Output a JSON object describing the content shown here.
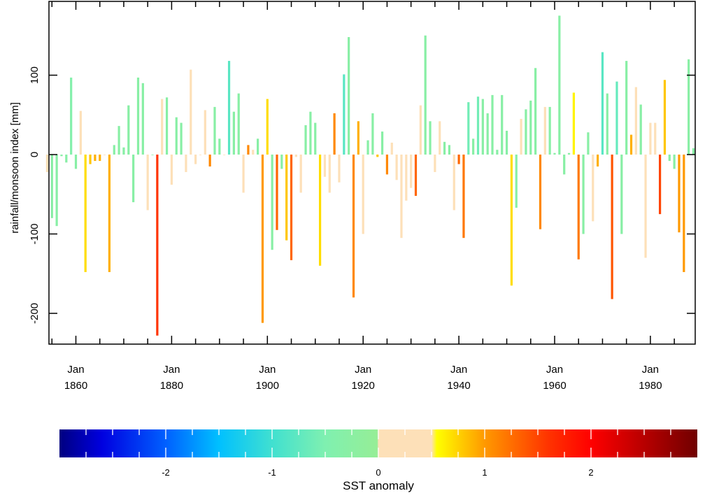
{
  "chart_data": {
    "type": "bar",
    "ylabel": "rainfall/monsoon index [mm]",
    "ylim": [
      -240,
      190
    ],
    "xlim": [
      1852,
      1990
    ],
    "y_ticks": [
      -200,
      -100,
      0,
      100
    ],
    "y_tick_labels": [
      "-200",
      "-100",
      "0",
      "100"
    ],
    "x_ticks": [
      {
        "year": 1860,
        "line1": "Jan",
        "line2": "1860"
      },
      {
        "year": 1880,
        "line1": "Jan",
        "line2": "1880"
      },
      {
        "year": 1900,
        "line1": "Jan",
        "line2": "1900"
      },
      {
        "year": 1920,
        "line1": "Jan",
        "line2": "1920"
      },
      {
        "year": 1940,
        "line1": "Jan",
        "line2": "1940"
      },
      {
        "year": 1960,
        "line1": "Jan",
        "line2": "1960"
      },
      {
        "year": 1980,
        "line1": "Jan",
        "line2": "1980"
      }
    ],
    "x_minor_tick_step": 5,
    "grid": false,
    "years": [
      1854,
      1855,
      1856,
      1857,
      1858,
      1859,
      1860,
      1861,
      1862,
      1863,
      1864,
      1865,
      1866,
      1867,
      1868,
      1869,
      1870,
      1871,
      1872,
      1873,
      1874,
      1875,
      1876,
      1877,
      1878,
      1879,
      1880,
      1881,
      1882,
      1883,
      1884,
      1885,
      1886,
      1887,
      1888,
      1889,
      1890,
      1891,
      1892,
      1893,
      1894,
      1895,
      1896,
      1897,
      1898,
      1899,
      1900,
      1901,
      1902,
      1903,
      1904,
      1905,
      1906,
      1907,
      1908,
      1909,
      1910,
      1911,
      1912,
      1913,
      1914,
      1915,
      1916,
      1917,
      1918,
      1919,
      1920,
      1921,
      1922,
      1923,
      1924,
      1925,
      1926,
      1927,
      1928,
      1929,
      1930,
      1931,
      1932,
      1933,
      1934,
      1935,
      1936,
      1937,
      1938,
      1939,
      1940,
      1941,
      1942,
      1943,
      1944,
      1945,
      1946,
      1947,
      1948,
      1949,
      1950,
      1951,
      1952,
      1953,
      1954,
      1955,
      1956,
      1957,
      1958,
      1959,
      1960,
      1961,
      1962,
      1963,
      1964,
      1965,
      1966,
      1967,
      1968,
      1969,
      1970,
      1971,
      1972,
      1973,
      1974,
      1975,
      1976,
      1977,
      1978,
      1979,
      1980,
      1981,
      1982,
      1983,
      1984,
      1985,
      1986,
      1987,
      1988,
      1989
    ],
    "rainfall": [
      -22,
      -80,
      -90,
      -2,
      -10,
      97,
      -18,
      55,
      -148,
      -12,
      -8,
      -8,
      0,
      -148,
      12,
      36,
      9,
      62,
      -60,
      97,
      90,
      -70,
      0,
      -228,
      70,
      72,
      -38,
      47,
      40,
      -22,
      107,
      -12,
      0,
      56,
      -15,
      60,
      20,
      0,
      118,
      54,
      77,
      -48,
      12,
      6,
      20,
      -212,
      70,
      -120,
      -95,
      -18,
      -108,
      -133,
      -3,
      -48,
      37,
      54,
      40,
      -140,
      -28,
      -48,
      52,
      -35,
      101,
      148,
      -180,
      42,
      -100,
      18,
      52,
      -3,
      29,
      -25,
      15,
      -32,
      -105,
      -58,
      -42,
      -52,
      62,
      150,
      42,
      -22,
      42,
      16,
      12,
      -70,
      -12,
      -105,
      66,
      20,
      73,
      70,
      52,
      75,
      6,
      75,
      30,
      -165,
      -67,
      45,
      57,
      68,
      109,
      -94,
      60,
      60,
      2,
      175,
      -25,
      2,
      78,
      -132,
      -100,
      28,
      -84,
      -15,
      129,
      77,
      -182,
      92,
      -100,
      118,
      25,
      85,
      63,
      -130,
      40,
      40,
      -75,
      94,
      -8,
      -18,
      -98,
      -148,
      120,
      8
    ],
    "sst": [
      0.2,
      -0.3,
      -0.3,
      -0.3,
      -0.3,
      -0.4,
      -0.3,
      0.2,
      0.7,
      0.8,
      0.9,
      0.9,
      0.2,
      0.9,
      -0.3,
      -0.3,
      -0.3,
      -0.3,
      -0.3,
      -0.3,
      -0.3,
      0.2,
      -0.3,
      1.6,
      0.2,
      -0.3,
      0.2,
      -0.3,
      -0.3,
      0.2,
      0.2,
      0.2,
      0.2,
      0.2,
      1.1,
      -0.3,
      -0.3,
      0.2,
      -0.8,
      -0.3,
      -0.3,
      0.2,
      1.1,
      0.4,
      -0.3,
      1.0,
      0.7,
      -0.3,
      1.3,
      -0.3,
      0.8,
      1.3,
      0.2,
      0.2,
      -0.3,
      -0.3,
      -0.3,
      0.7,
      0.2,
      0.2,
      1.1,
      0.2,
      -0.8,
      -0.3,
      1.1,
      0.9,
      0.2,
      -0.3,
      -0.3,
      0.8,
      -0.3,
      1.1,
      0.2,
      0.2,
      0.2,
      0.2,
      0.2,
      1.3,
      0.2,
      -0.3,
      -0.3,
      0.2,
      0.2,
      -0.3,
      -0.3,
      0.2,
      1.3,
      1.2,
      -0.6,
      -0.3,
      -0.6,
      -0.3,
      -0.3,
      -0.3,
      -0.3,
      -0.3,
      -0.3,
      0.7,
      -0.3,
      0.2,
      -0.3,
      -0.3,
      -0.3,
      1.1,
      0.2,
      -0.3,
      -0.3,
      -0.3,
      -0.3,
      -0.3,
      0.6,
      1.2,
      -0.3,
      -0.3,
      0.2,
      0.9,
      -0.8,
      -0.3,
      1.4,
      -0.7,
      -0.3,
      -0.3,
      0.9,
      0.2,
      -0.3,
      0.2,
      0.2,
      0.2,
      1.5,
      0.8,
      -0.3,
      -0.3,
      1.0,
      1.0,
      -0.3,
      -0.3
    ]
  },
  "colorbar": {
    "label": "SST anomaly",
    "range": [
      -3,
      3
    ],
    "ticks": [
      -2,
      -1,
      0,
      1,
      2
    ],
    "tick_labels": [
      "-2",
      "-1",
      "0",
      "1",
      "2"
    ],
    "minor_tick_step": 0.25,
    "colors": [
      {
        "value": -3.0,
        "color": "#000080"
      },
      {
        "value": -2.6,
        "color": "#0000e0"
      },
      {
        "value": -2.0,
        "color": "#0060ff"
      },
      {
        "value": -1.5,
        "color": "#00c0ff"
      },
      {
        "value": -1.0,
        "color": "#40e0d0"
      },
      {
        "value": -0.5,
        "color": "#7ff0b0"
      },
      {
        "value": -0.01,
        "color": "#96ee96"
      },
      {
        "value": 0.0,
        "color": "#fde0b8"
      },
      {
        "value": 0.5,
        "color": "#fde0b8"
      },
      {
        "value": 0.55,
        "color": "#ffff00"
      },
      {
        "value": 1.0,
        "color": "#ff9900"
      },
      {
        "value": 1.6,
        "color": "#ff3300"
      },
      {
        "value": 2.0,
        "color": "#ff0000"
      },
      {
        "value": 3.0,
        "color": "#700000"
      }
    ]
  }
}
